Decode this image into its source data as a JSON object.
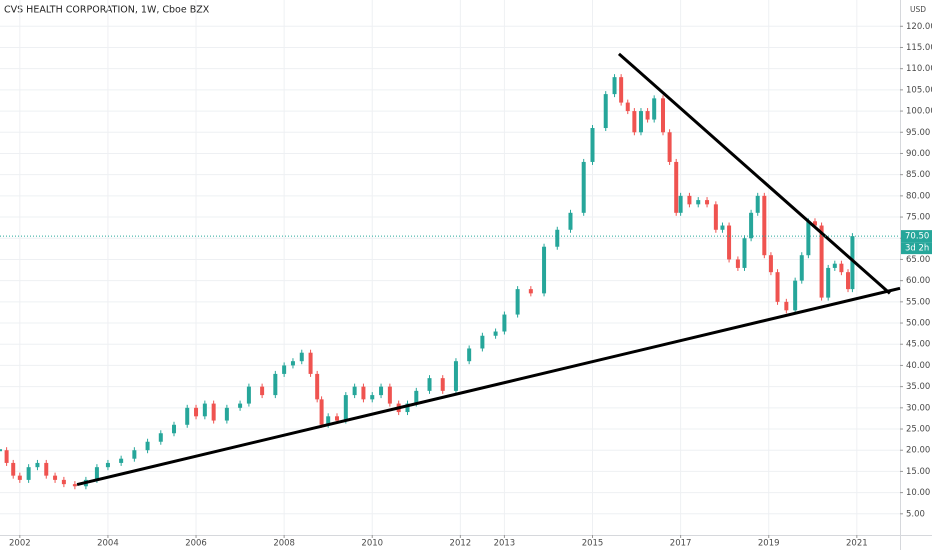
{
  "chart_data": {
    "type": "candle",
    "title": "CVS HEALTH CORPORATION, 1W, Cboe BZX",
    "currency": "USD",
    "x": [
      2001.55,
      2001.7,
      2001.85,
      2002.0,
      2002.2,
      2002.4,
      2002.6,
      2002.8,
      2003.0,
      2003.25,
      2003.5,
      2003.75,
      2004.0,
      2004.3,
      2004.6,
      2004.9,
      2005.2,
      2005.5,
      2005.8,
      2006.0,
      2006.2,
      2006.4,
      2006.7,
      2007.0,
      2007.2,
      2007.5,
      2007.8,
      2008.0,
      2008.2,
      2008.4,
      2008.6,
      2008.75,
      2008.85,
      2009.0,
      2009.2,
      2009.4,
      2009.6,
      2009.8,
      2010.0,
      2010.2,
      2010.4,
      2010.6,
      2010.8,
      2011.0,
      2011.3,
      2011.6,
      2011.9,
      2012.2,
      2012.5,
      2012.8,
      2013.0,
      2013.3,
      2013.6,
      2013.9,
      2014.2,
      2014.5,
      2014.8,
      2015.0,
      2015.3,
      2015.5,
      2015.65,
      2015.8,
      2015.95,
      2016.1,
      2016.25,
      2016.4,
      2016.6,
      2016.75,
      2016.9,
      2017.0,
      2017.2,
      2017.4,
      2017.6,
      2017.8,
      2017.95,
      2018.1,
      2018.3,
      2018.45,
      2018.6,
      2018.75,
      2018.9,
      2019.05,
      2019.2,
      2019.4,
      2019.6,
      2019.75,
      2019.9,
      2020.05,
      2020.2,
      2020.35,
      2020.5,
      2020.65,
      2020.8,
      2020.9
    ],
    "series": [
      {
        "up_color": "#26a69a",
        "down_color": "#ef5350",
        "values": [
          20,
          17,
          14,
          13,
          16,
          17,
          14,
          13,
          12,
          11.5,
          13,
          16,
          17,
          18,
          20,
          22,
          24,
          26,
          30,
          28,
          31,
          27,
          30,
          31,
          35,
          33,
          38,
          40,
          41,
          43,
          38,
          32,
          26,
          28,
          27,
          33,
          35,
          32,
          33,
          35,
          31,
          29,
          31,
          34,
          37,
          34,
          41,
          44,
          47,
          48,
          52,
          58,
          57,
          68,
          72,
          76,
          88,
          96,
          104,
          108,
          102,
          100,
          95,
          100,
          98,
          103,
          95,
          88,
          76,
          80,
          78,
          79,
          78,
          72,
          73,
          65,
          63,
          70,
          76,
          80,
          66,
          62,
          55,
          53,
          60,
          66,
          74,
          73,
          56,
          63,
          64,
          62,
          58,
          70.5
        ]
      }
    ],
    "trendlines": [
      {
        "color": "#000000",
        "x": [
          2003.3,
          2021.98
        ],
        "y": [
          11.9,
          58.2
        ]
      },
      {
        "color": "#000000",
        "x": [
          2015.6,
          2021.75
        ],
        "y": [
          113.5,
          57.0
        ]
      }
    ],
    "last_price": {
      "value": 70.5,
      "label": "70.50"
    },
    "countdown": "3d 2h",
    "xlim": [
      2001.55,
      2021.98
    ],
    "ylim": [
      0,
      126.2
    ],
    "xticks": [
      2002,
      2004,
      2006,
      2008,
      2010,
      2012,
      2013,
      2015,
      2017,
      2019,
      2021
    ],
    "yticks": [
      {
        "value": 5,
        "label": "5.00"
      },
      {
        "value": 10,
        "label": "10.00"
      },
      {
        "value": 15,
        "label": "15.00"
      },
      {
        "value": 20,
        "label": "20.00"
      },
      {
        "value": 25,
        "label": "25.00"
      },
      {
        "value": 30,
        "label": "30.00"
      },
      {
        "value": 35,
        "label": "35.00"
      },
      {
        "value": 40,
        "label": "40.00"
      },
      {
        "value": 45,
        "label": "45.00"
      },
      {
        "value": 50,
        "label": "50.00"
      },
      {
        "value": 55,
        "label": "55.00"
      },
      {
        "value": 60,
        "label": "60.00"
      },
      {
        "value": 65,
        "label": "65.00"
      },
      {
        "value": 70,
        "label": "70.00"
      },
      {
        "value": 75,
        "label": "75.00"
      },
      {
        "value": 80,
        "label": "80.00"
      },
      {
        "value": 85,
        "label": "85.00"
      },
      {
        "value": 90,
        "label": "90.00"
      },
      {
        "value": 95,
        "label": "95.00"
      },
      {
        "value": 100,
        "label": "100.00"
      },
      {
        "value": 105,
        "label": "105.00"
      },
      {
        "value": 110,
        "label": "110.00"
      },
      {
        "value": 115,
        "label": "115.00"
      },
      {
        "value": 120,
        "label": "120.00"
      }
    ],
    "grid": true
  }
}
